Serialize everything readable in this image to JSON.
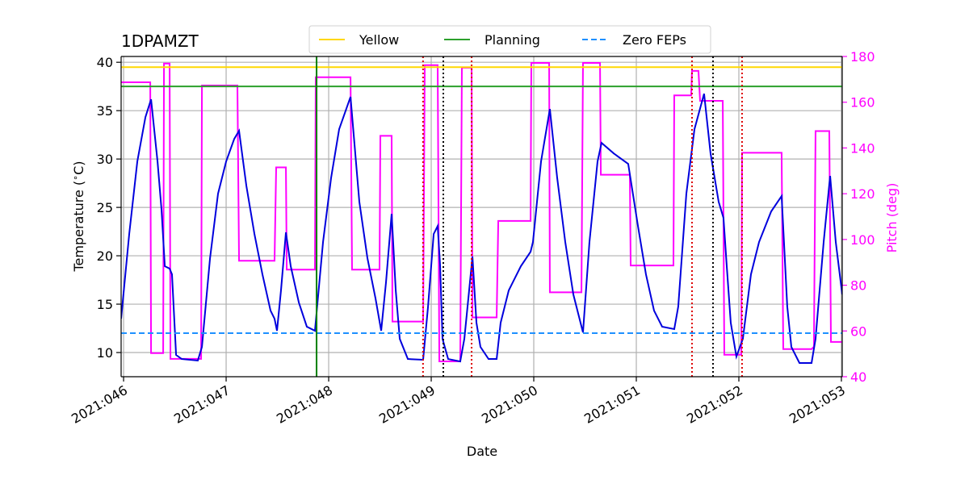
{
  "chart_data": {
    "type": "line",
    "title": "1DPAMZT",
    "xlabel": "Date",
    "ylabel": "Temperature ($^\\circ$C)",
    "y2label": "Pitch (deg)",
    "xlim": [
      45.976,
      53.008
    ],
    "xticks": [
      {
        "value": 46,
        "label": "2021:046"
      },
      {
        "value": 47,
        "label": "2021:047"
      },
      {
        "value": 48,
        "label": "2021:048"
      },
      {
        "value": 49,
        "label": "2021:049"
      },
      {
        "value": 50,
        "label": "2021:050"
      },
      {
        "value": 51,
        "label": "2021:051"
      },
      {
        "value": 52,
        "label": "2021:052"
      },
      {
        "value": 53,
        "label": "2021:053"
      }
    ],
    "ylim": [
      7.5,
      40.6
    ],
    "yticks": [
      10,
      15,
      20,
      25,
      30,
      35,
      40
    ],
    "y2lim": [
      40,
      180
    ],
    "y2ticks": [
      40,
      60,
      80,
      100,
      120,
      140,
      160,
      180
    ],
    "grid": true,
    "legend": "upper center",
    "series": [
      {
        "color": "#0000dd",
        "x": [
          45.976,
          46.055,
          46.134,
          46.213,
          46.268,
          46.331,
          46.37,
          46.402,
          46.449,
          46.472,
          46.512,
          46.567,
          46.724,
          46.764,
          46.843,
          46.921,
          47.0,
          47.079,
          47.126,
          47.197,
          47.276,
          47.354,
          47.433,
          47.472,
          47.496,
          47.535,
          47.583,
          47.63,
          47.709,
          47.787,
          47.866,
          47.945,
          48.024,
          48.102,
          48.213,
          48.299,
          48.378,
          48.457,
          48.512,
          48.559,
          48.614,
          48.654,
          48.693,
          48.772,
          48.921,
          48.969,
          49.024,
          49.063,
          49.087,
          49.11,
          49.165,
          49.283,
          49.323,
          49.362,
          49.402,
          49.441,
          49.48,
          49.559,
          49.638,
          49.677,
          49.756,
          49.874,
          49.969,
          49.992,
          50.071,
          50.157,
          50.228,
          50.307,
          50.386,
          50.48,
          50.543,
          50.622,
          50.661,
          50.78,
          50.921,
          51.016,
          51.094,
          51.173,
          51.252,
          51.37,
          51.409,
          51.488,
          51.567,
          51.661,
          51.724,
          51.803,
          51.85,
          51.882,
          51.921,
          51.976,
          52.039,
          52.118,
          52.197,
          52.315,
          52.417,
          52.472,
          52.512,
          52.591,
          52.709,
          52.748,
          52.827,
          52.89,
          52.945,
          53.008
        ],
        "values": [
          13.5,
          22.25,
          29.75,
          34.33,
          36.17,
          29.75,
          24.75,
          18.92,
          18.67,
          18.08,
          9.75,
          9.33,
          9.17,
          10.58,
          19.75,
          26.42,
          29.75,
          32.08,
          32.92,
          27.25,
          22.25,
          18.08,
          14.33,
          13.5,
          12.25,
          16.42,
          22.42,
          18.92,
          15.17,
          12.67,
          12.25,
          21.42,
          28.08,
          33.08,
          36.42,
          25.58,
          19.75,
          15.58,
          12.25,
          17.25,
          24.33,
          16.42,
          11.42,
          9.33,
          9.25,
          14.75,
          22.25,
          23.08,
          18.92,
          11.42,
          9.33,
          9.08,
          11.42,
          15.58,
          19.92,
          13.08,
          10.58,
          9.33,
          9.33,
          13.08,
          16.42,
          18.92,
          20.42,
          21.42,
          29.75,
          35.17,
          28.08,
          21.42,
          16.0,
          12.08,
          21.42,
          29.75,
          31.67,
          30.58,
          29.5,
          23.08,
          18.08,
          14.33,
          12.67,
          12.42,
          14.75,
          26.42,
          33.08,
          36.75,
          30.58,
          25.58,
          23.92,
          18.92,
          13.08,
          9.58,
          11.42,
          18.08,
          21.42,
          24.58,
          26.17,
          14.75,
          10.58,
          8.92,
          8.92,
          11.42,
          21.42,
          28.25,
          21.42,
          16.0
        ]
      },
      {
        "color": "#ff00ff",
        "axis": "y2",
        "x": [
          45.976,
          46.26,
          46.268,
          46.386,
          46.394,
          46.449,
          46.457,
          46.756,
          46.764,
          47.11,
          47.126,
          47.472,
          47.488,
          47.583,
          47.591,
          47.866,
          47.874,
          48.213,
          48.228,
          48.496,
          48.504,
          48.614,
          48.622,
          48.921,
          48.937,
          49.063,
          49.079,
          49.283,
          49.299,
          49.394,
          49.402,
          49.638,
          49.654,
          49.969,
          49.976,
          50.15,
          50.157,
          50.465,
          50.48,
          50.646,
          50.654,
          50.937,
          50.945,
          51.362,
          51.37,
          51.535,
          51.543,
          51.606,
          51.622,
          51.843,
          51.858,
          52.024,
          52.031,
          52.417,
          52.433,
          52.709,
          52.732,
          52.748,
          52.882,
          52.898,
          53.008
        ],
        "values": [
          168.7,
          168.7,
          50.3,
          50.3,
          176.9,
          176.9,
          47.8,
          47.8,
          167.3,
          167.3,
          90.7,
          90.7,
          131.5,
          131.5,
          86.8,
          86.8,
          170.9,
          170.9,
          86.8,
          86.8,
          145.3,
          145.3,
          64.1,
          64.1,
          176.2,
          176.2,
          46.7,
          46.7,
          175.1,
          175.1,
          65.9,
          65.9,
          108.1,
          108.1,
          177.2,
          177.2,
          76.9,
          76.9,
          177.2,
          177.2,
          128.3,
          128.3,
          88.6,
          88.6,
          163.0,
          163.0,
          173.7,
          173.7,
          160.6,
          160.6,
          49.6,
          49.6,
          137.9,
          137.9,
          52.1,
          52.1,
          53.1,
          147.4,
          147.4,
          55.2,
          55.2
        ]
      }
    ],
    "hlines": [
      {
        "name": "Yellow",
        "value": 39.5,
        "color": "#ffd700",
        "dash": false
      },
      {
        "name": "Planning",
        "value": 37.5,
        "color": "#2ca02c",
        "dash": false
      },
      {
        "name": "Zero FEPs",
        "value": 12,
        "color": "#1e90ff",
        "dash": true
      }
    ],
    "vlines": [
      {
        "x": 47.882,
        "color": "#008000",
        "dotted": false
      },
      {
        "x": 48.92,
        "color": "#dd0000",
        "dotted": true
      },
      {
        "x": 49.118,
        "color": "#000000",
        "dotted": true
      },
      {
        "x": 49.394,
        "color": "#dd0000",
        "dotted": true
      },
      {
        "x": 51.543,
        "color": "#dd0000",
        "dotted": true
      },
      {
        "x": 51.748,
        "color": "#000000",
        "dotted": true
      },
      {
        "x": 52.031,
        "color": "#dd0000",
        "dotted": true
      }
    ]
  }
}
